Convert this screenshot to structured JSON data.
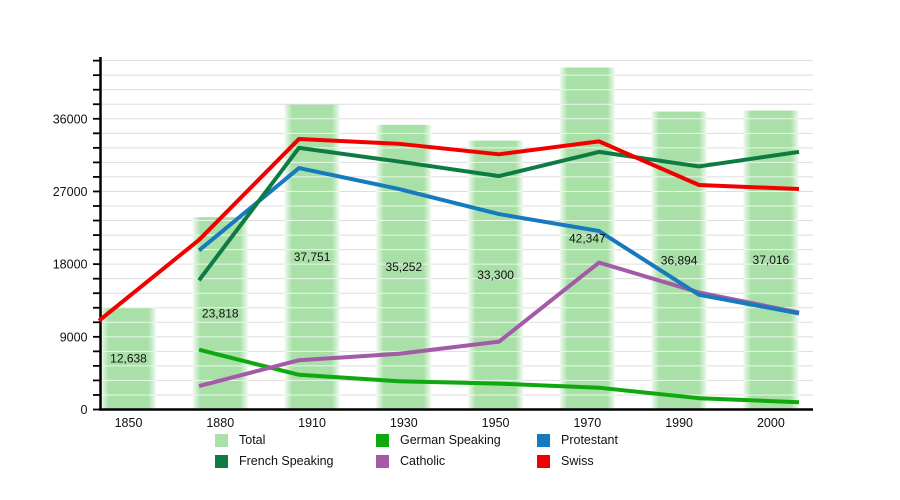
{
  "chart_data": {
    "type": "bar+line",
    "title": "",
    "xlabel": "",
    "ylabel": "",
    "categories": [
      "1850",
      "1880",
      "1910",
      "1930",
      "1950",
      "1970",
      "1990",
      "2000"
    ],
    "bars": {
      "name": "Total",
      "color": "#A8E0A8",
      "values": [
        12638,
        23818,
        37751,
        35252,
        33300,
        42347,
        36894,
        37016
      ],
      "labels": [
        "12,638",
        "23,818",
        "37,751",
        "35,252",
        "33,300",
        "42,347",
        "36,894",
        "37,016"
      ]
    },
    "series": [
      {
        "name": "Swiss",
        "color": "#F20000",
        "values": [
          11000,
          21000,
          33500,
          32900,
          31600,
          33200,
          27800,
          27300
        ]
      },
      {
        "name": "French Speaking",
        "color": "#0E7C42",
        "values": [
          null,
          16000,
          32400,
          30700,
          28900,
          31900,
          30100,
          31900
        ]
      },
      {
        "name": "Protestant",
        "color": "#1779BE",
        "values": [
          null,
          19700,
          29900,
          27300,
          24200,
          22100,
          14200,
          11900
        ]
      },
      {
        "name": "Catholic",
        "color": "#A35BA8",
        "values": [
          null,
          2900,
          6100,
          6900,
          8400,
          18200,
          14500,
          12000
        ]
      },
      {
        "name": "German Speaking",
        "color": "#0FA80F",
        "values": [
          null,
          7400,
          4300,
          3500,
          3200,
          2700,
          1400,
          900
        ]
      }
    ],
    "y_tick_labels": [
      "0",
      "9000",
      "18000",
      "27000",
      "36000"
    ],
    "y_label_step": 9000,
    "grid_step": 1800,
    "ylim": [
      0,
      43650
    ],
    "grid": "on",
    "legend_position": "bottom",
    "legend": [
      {
        "label": "Total",
        "color": "#A8E0A8"
      },
      {
        "label": "French Speaking",
        "color": "#0E7C42"
      },
      {
        "label": "German Speaking",
        "color": "#0FA80F"
      },
      {
        "label": "Catholic",
        "color": "#A35BA8"
      },
      {
        "label": "Protestant",
        "color": "#1779BE"
      },
      {
        "label": "Swiss",
        "color": "#F20000"
      }
    ]
  }
}
